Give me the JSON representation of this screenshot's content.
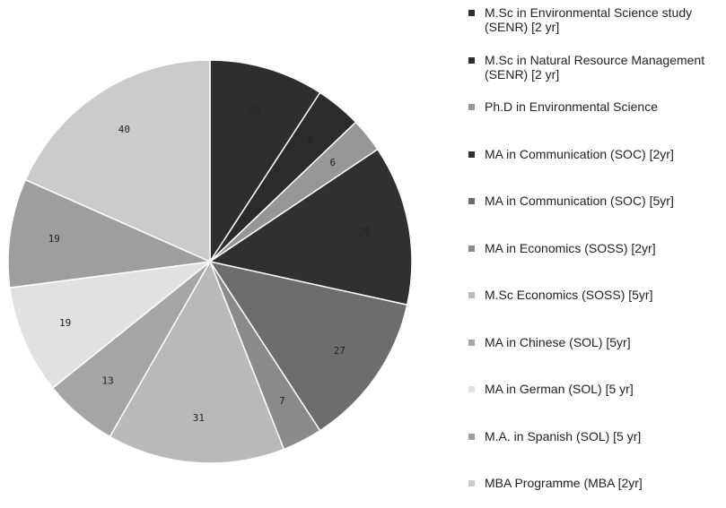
{
  "chart_data": {
    "type": "pie",
    "title": "",
    "slices": [
      {
        "label": "M.Sc in Environmental Science study (SENR) [2 yr]",
        "value": 20,
        "color": "#2e2e2e"
      },
      {
        "label": "M.Sc in Natural Resource Management (SENR) [2 yr]",
        "value": 8,
        "color": "#2b2b2b"
      },
      {
        "label": "Ph.D in Environmental Science",
        "value": 6,
        "color": "#969696"
      },
      {
        "label": "MA in Communication (SOC) [2yr]",
        "value": 28,
        "color": "#303030"
      },
      {
        "label": "MA in Communication (SOC) [5yr]",
        "value": 27,
        "color": "#6d6d6d"
      },
      {
        "label": "MA in Economics (SOSS) [2yr]",
        "value": 7,
        "color": "#8a8a8a"
      },
      {
        "label": "M.Sc Economics (SOSS) [5yr]",
        "value": 31,
        "color": "#b9b9b9"
      },
      {
        "label": "MA in Chinese (SOL) [5yr]",
        "value": 13,
        "color": "#a5a5a5"
      },
      {
        "label": "MA in German (SOL) [5 yr]",
        "value": 19,
        "color": "#e1e1e1"
      },
      {
        "label": "M.A. in Spanish (SOL) [5 yr]",
        "value": 19,
        "color": "#9e9e9e"
      },
      {
        "label": "MBA Programme (MBA [2yr]",
        "value": 40,
        "color": "#cbcbcb"
      }
    ],
    "legend_position": "right"
  }
}
